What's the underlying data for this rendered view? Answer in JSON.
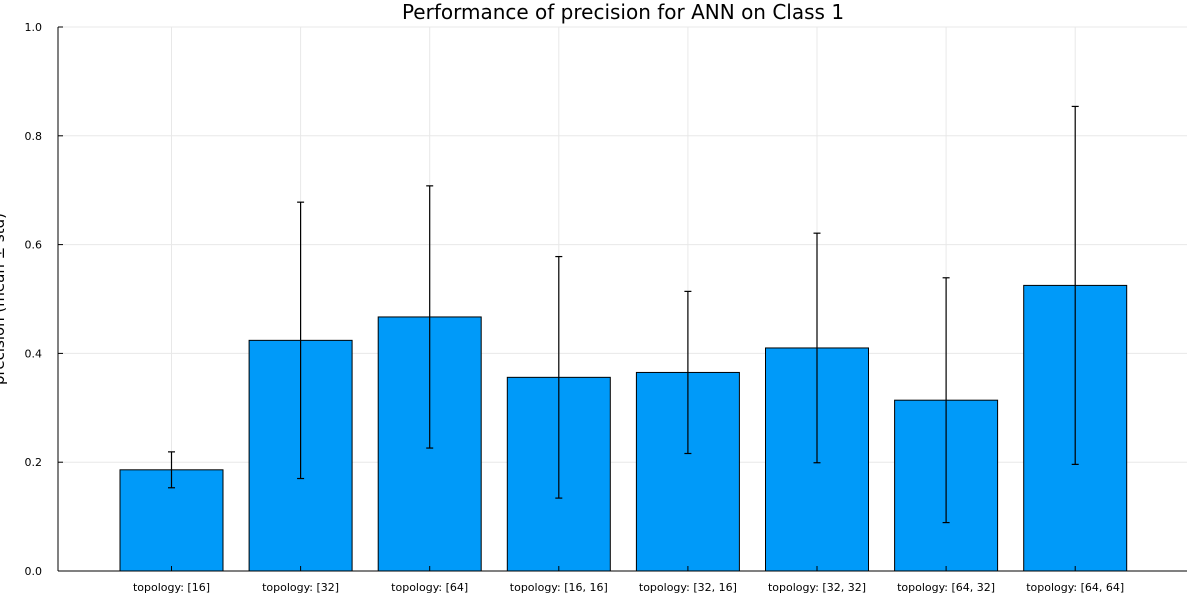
{
  "chart_data": {
    "type": "bar",
    "title": "Performance of precision for ANN on Class 1",
    "ylabel": "precision (mean ± std)",
    "xlabel": "",
    "categories": [
      "topology: [16]",
      "topology: [32]",
      "topology: [64]",
      "topology: [16, 16]",
      "topology: [32, 16]",
      "topology: [32, 32]",
      "topology: [64, 32]",
      "topology: [64, 64]"
    ],
    "values": [
      0.186,
      0.424,
      0.467,
      0.356,
      0.365,
      0.41,
      0.314,
      0.525
    ],
    "error": [
      0.033,
      0.254,
      0.241,
      0.222,
      0.149,
      0.211,
      0.225,
      0.329
    ],
    "ylim": [
      0,
      1
    ],
    "yticks": [
      0.0,
      0.2,
      0.4,
      0.6,
      0.8,
      1.0
    ],
    "ytick_labels": [
      "0.0",
      "0.2",
      "0.4",
      "0.6",
      "0.8",
      "1.0"
    ],
    "grid": true,
    "colors": {
      "bar": "#009af9",
      "error": "#000000"
    }
  }
}
